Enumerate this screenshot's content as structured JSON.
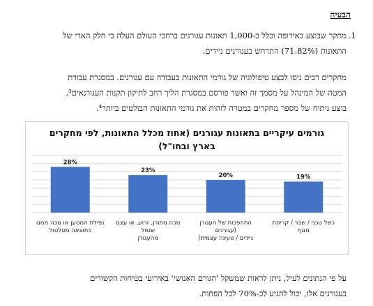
{
  "heading": "הבעיה",
  "paragraph1": {
    "number": "1.",
    "line1": "מחקר שבוצע באירופה וכלל כ-1,000 תאונות עגורנים ברחבי העולם העלה כי חלק הארי של",
    "line2": "התאונות (71.82%) התרחש בעגורנים ניידים."
  },
  "paragraph2": {
    "line1": "מחקרים רבים ניסו לבצע טיפולוגיה של גורמי התאונות בעבודה עם עגורנים. במסגרת עבודת",
    "line2": "המטה של המינהל על מסמך זה ואשר פורסם במסגרת הליך רחב לתיקון תקנות העגורנאים³,",
    "line3": "בוצע ניתוח של מספר מחקרים במטרה לזהות את גורמי התאונות הבולטים ביותר⁴."
  },
  "paragraph3": {
    "line1": "על פי הנתונים לעיל, ניתן לראות שמשקל 'הגורם האנושי' באירועי בטיחות הקשורים",
    "line2": "בעגורנים אלו, יכול להגיע לכ-70% לכל הפחות."
  },
  "chart_data": {
    "type": "bar",
    "title_line1": "גורמים עיקריים בתאונות עגורנים (אחוז מכלל התאונות, לפי מחקרים",
    "title_line2": "בארץ ובחו\"ל)",
    "categories": [
      [
        "נפילת המטען או מכה ממנו",
        "כתוצאה מטלטול"
      ],
      [
        "מכה מתורן, זרוע, או עצם שנפל",
        "מהעגורן"
      ],
      [
        "התהפכות של העגורן (עגורנים",
        "ניידים / טעינה עצמית)"
      ],
      [
        "כשל טכני / שבר / קריסת מנוף",
        ""
      ]
    ],
    "values": [
      28,
      23,
      20,
      19
    ],
    "value_labels": [
      "28%",
      "23%",
      "20%",
      "19%"
    ],
    "ylim": [
      0,
      35
    ],
    "gridlines": true,
    "bar_color": "#4472C4",
    "grid_color": "#d9d9d9"
  }
}
